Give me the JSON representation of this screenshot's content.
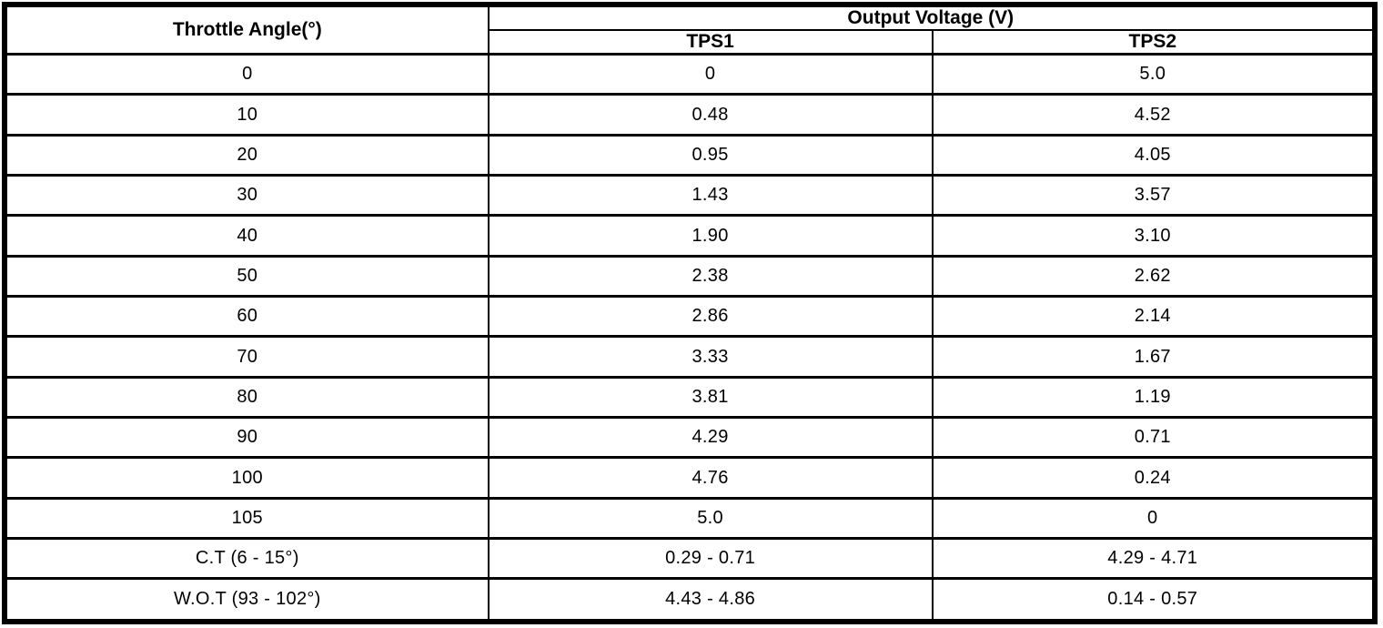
{
  "colors": {
    "border": "#000000",
    "background": "#ffffff",
    "text": "#000000"
  },
  "table": {
    "header": {
      "angle_label": "Throttle Angle(°)",
      "group_label": "Output Voltage (V)",
      "tps1_label": "TPS1",
      "tps2_label": "TPS2"
    },
    "rows": [
      {
        "angle": "0",
        "tps1": "0",
        "tps2": "5.0"
      },
      {
        "angle": "10",
        "tps1": "0.48",
        "tps2": "4.52"
      },
      {
        "angle": "20",
        "tps1": "0.95",
        "tps2": "4.05"
      },
      {
        "angle": "30",
        "tps1": "1.43",
        "tps2": "3.57"
      },
      {
        "angle": "40",
        "tps1": "1.90",
        "tps2": "3.10"
      },
      {
        "angle": "50",
        "tps1": "2.38",
        "tps2": "2.62"
      },
      {
        "angle": "60",
        "tps1": "2.86",
        "tps2": "2.14"
      },
      {
        "angle": "70",
        "tps1": "3.33",
        "tps2": "1.67"
      },
      {
        "angle": "80",
        "tps1": "3.81",
        "tps2": "1.19"
      },
      {
        "angle": "90",
        "tps1": "4.29",
        "tps2": "0.71"
      },
      {
        "angle": "100",
        "tps1": "4.76",
        "tps2": "0.24"
      },
      {
        "angle": "105",
        "tps1": "5.0",
        "tps2": "0"
      },
      {
        "angle": "C.T (6 - 15°)",
        "tps1": "0.29 - 0.71",
        "tps2": "4.29 - 4.71"
      },
      {
        "angle": "W.O.T (93 - 102°)",
        "tps1": "4.43 - 4.86",
        "tps2": "0.14 - 0.57"
      }
    ]
  },
  "chart_data": {
    "type": "table",
    "title": "Output Voltage (V)",
    "columns": [
      "Throttle Angle(°)",
      "TPS1",
      "TPS2"
    ],
    "throttle_angle_deg": [
      0,
      10,
      20,
      30,
      40,
      50,
      60,
      70,
      80,
      90,
      100,
      105
    ],
    "series": [
      {
        "name": "TPS1",
        "values": [
          0,
          0.48,
          0.95,
          1.43,
          1.9,
          2.38,
          2.86,
          3.33,
          3.81,
          4.29,
          4.76,
          5.0
        ]
      },
      {
        "name": "TPS2",
        "values": [
          5.0,
          4.52,
          4.05,
          3.57,
          3.1,
          2.62,
          2.14,
          1.67,
          1.19,
          0.71,
          0.24,
          0
        ]
      }
    ],
    "special_rows": [
      {
        "label": "C.T (6 - 15°)",
        "tps1_range": "0.29 - 0.71",
        "tps2_range": "4.29 - 4.71"
      },
      {
        "label": "W.O.T (93 - 102°)",
        "tps1_range": "4.43 - 4.86",
        "tps2_range": "0.14 - 0.57"
      }
    ]
  }
}
